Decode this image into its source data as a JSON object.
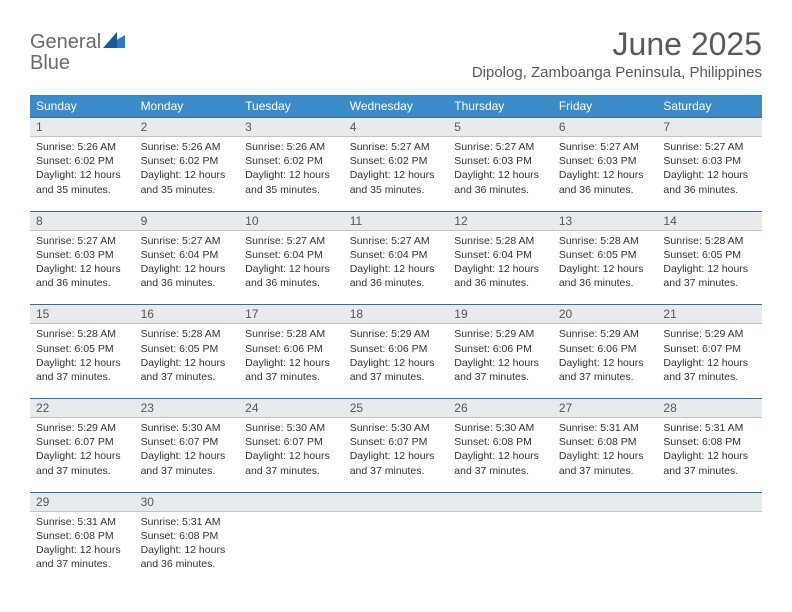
{
  "brand": {
    "word1": "General",
    "word2": "Blue",
    "logo_colors": {
      "gray": "#6a6a6a",
      "blue": "#2f79bf",
      "dark_blue": "#1d5a94"
    }
  },
  "header": {
    "month_title": "June 2025",
    "location": "Dipolog, Zamboanga Peninsula, Philippines"
  },
  "style": {
    "header_bar_color": "#3b8bc9",
    "daynum_bg": "#e8ebee",
    "divider_color": "#2f6fa8",
    "text_color": "#333333",
    "page_bg": "#ffffff",
    "title_fontsize_pt": 24,
    "location_fontsize_pt": 11,
    "weekday_fontsize_pt": 9,
    "cell_fontsize_pt": 8
  },
  "weekdays": [
    "Sunday",
    "Monday",
    "Tuesday",
    "Wednesday",
    "Thursday",
    "Friday",
    "Saturday"
  ],
  "columns": 7,
  "days": [
    {
      "n": "1",
      "sunrise": "5:26 AM",
      "sunset": "6:02 PM",
      "day_h": 12,
      "day_m": 35
    },
    {
      "n": "2",
      "sunrise": "5:26 AM",
      "sunset": "6:02 PM",
      "day_h": 12,
      "day_m": 35
    },
    {
      "n": "3",
      "sunrise": "5:26 AM",
      "sunset": "6:02 PM",
      "day_h": 12,
      "day_m": 35
    },
    {
      "n": "4",
      "sunrise": "5:27 AM",
      "sunset": "6:02 PM",
      "day_h": 12,
      "day_m": 35
    },
    {
      "n": "5",
      "sunrise": "5:27 AM",
      "sunset": "6:03 PM",
      "day_h": 12,
      "day_m": 36
    },
    {
      "n": "6",
      "sunrise": "5:27 AM",
      "sunset": "6:03 PM",
      "day_h": 12,
      "day_m": 36
    },
    {
      "n": "7",
      "sunrise": "5:27 AM",
      "sunset": "6:03 PM",
      "day_h": 12,
      "day_m": 36
    },
    {
      "n": "8",
      "sunrise": "5:27 AM",
      "sunset": "6:03 PM",
      "day_h": 12,
      "day_m": 36
    },
    {
      "n": "9",
      "sunrise": "5:27 AM",
      "sunset": "6:04 PM",
      "day_h": 12,
      "day_m": 36
    },
    {
      "n": "10",
      "sunrise": "5:27 AM",
      "sunset": "6:04 PM",
      "day_h": 12,
      "day_m": 36
    },
    {
      "n": "11",
      "sunrise": "5:27 AM",
      "sunset": "6:04 PM",
      "day_h": 12,
      "day_m": 36
    },
    {
      "n": "12",
      "sunrise": "5:28 AM",
      "sunset": "6:04 PM",
      "day_h": 12,
      "day_m": 36
    },
    {
      "n": "13",
      "sunrise": "5:28 AM",
      "sunset": "6:05 PM",
      "day_h": 12,
      "day_m": 36
    },
    {
      "n": "14",
      "sunrise": "5:28 AM",
      "sunset": "6:05 PM",
      "day_h": 12,
      "day_m": 37
    },
    {
      "n": "15",
      "sunrise": "5:28 AM",
      "sunset": "6:05 PM",
      "day_h": 12,
      "day_m": 37
    },
    {
      "n": "16",
      "sunrise": "5:28 AM",
      "sunset": "6:05 PM",
      "day_h": 12,
      "day_m": 37
    },
    {
      "n": "17",
      "sunrise": "5:28 AM",
      "sunset": "6:06 PM",
      "day_h": 12,
      "day_m": 37
    },
    {
      "n": "18",
      "sunrise": "5:29 AM",
      "sunset": "6:06 PM",
      "day_h": 12,
      "day_m": 37
    },
    {
      "n": "19",
      "sunrise": "5:29 AM",
      "sunset": "6:06 PM",
      "day_h": 12,
      "day_m": 37
    },
    {
      "n": "20",
      "sunrise": "5:29 AM",
      "sunset": "6:06 PM",
      "day_h": 12,
      "day_m": 37
    },
    {
      "n": "21",
      "sunrise": "5:29 AM",
      "sunset": "6:07 PM",
      "day_h": 12,
      "day_m": 37
    },
    {
      "n": "22",
      "sunrise": "5:29 AM",
      "sunset": "6:07 PM",
      "day_h": 12,
      "day_m": 37
    },
    {
      "n": "23",
      "sunrise": "5:30 AM",
      "sunset": "6:07 PM",
      "day_h": 12,
      "day_m": 37
    },
    {
      "n": "24",
      "sunrise": "5:30 AM",
      "sunset": "6:07 PM",
      "day_h": 12,
      "day_m": 37
    },
    {
      "n": "25",
      "sunrise": "5:30 AM",
      "sunset": "6:07 PM",
      "day_h": 12,
      "day_m": 37
    },
    {
      "n": "26",
      "sunrise": "5:30 AM",
      "sunset": "6:08 PM",
      "day_h": 12,
      "day_m": 37
    },
    {
      "n": "27",
      "sunrise": "5:31 AM",
      "sunset": "6:08 PM",
      "day_h": 12,
      "day_m": 37
    },
    {
      "n": "28",
      "sunrise": "5:31 AM",
      "sunset": "6:08 PM",
      "day_h": 12,
      "day_m": 37
    },
    {
      "n": "29",
      "sunrise": "5:31 AM",
      "sunset": "6:08 PM",
      "day_h": 12,
      "day_m": 37
    },
    {
      "n": "30",
      "sunrise": "5:31 AM",
      "sunset": "6:08 PM",
      "day_h": 12,
      "day_m": 36
    }
  ],
  "labels": {
    "sunrise_prefix": "Sunrise: ",
    "sunset_prefix": "Sunset: ",
    "daylight_prefix": "Daylight: ",
    "hours_word": " hours",
    "and_word": " and ",
    "minutes_word": " minutes."
  }
}
